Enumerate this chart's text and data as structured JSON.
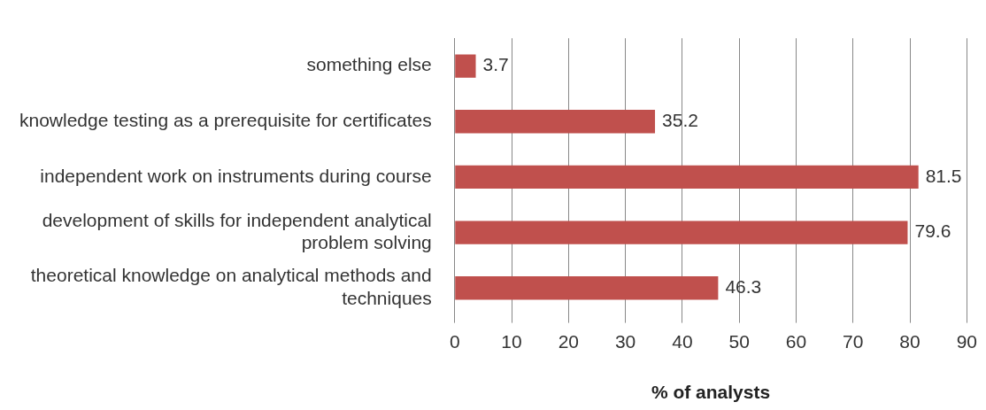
{
  "chart_data": {
    "type": "bar",
    "orientation": "horizontal",
    "xlabel": "% of analysts",
    "categories": [
      "something else",
      "knowledge testing as a prerequisite for certificates",
      "independent work on instruments during course",
      "development of skills for independent analytical problem solving",
      "theoretical knowledge on analytical methods and techniques"
    ],
    "values": [
      3.7,
      35.2,
      81.5,
      79.6,
      46.3
    ],
    "color": "#c0504d",
    "xlim": [
      0,
      90
    ],
    "xticks": [
      0,
      10,
      20,
      30,
      40,
      50,
      60,
      70,
      80,
      90
    ],
    "grid": "x",
    "data_labels": true,
    "legend": false
  }
}
